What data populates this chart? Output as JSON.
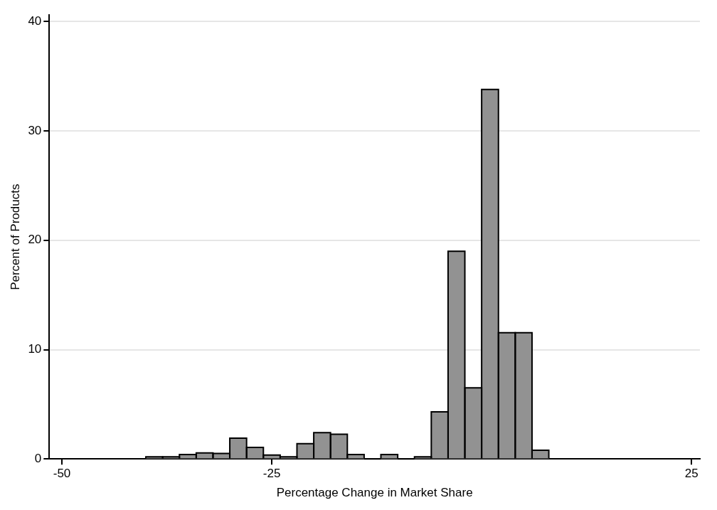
{
  "chart_data": {
    "type": "histogram",
    "xlabel": "Percentage Change in Market Share",
    "ylabel": "Percent of Products",
    "bins": [
      -40,
      -38,
      -36,
      -34,
      -32,
      -30,
      -28,
      -26,
      -24,
      -22,
      -20,
      -18,
      -16,
      -14,
      -12,
      -10,
      -8,
      -6,
      -4,
      -2,
      0,
      2,
      4,
      6,
      8
    ],
    "values": [
      0.2,
      0.2,
      0.4,
      0.55,
      0.5,
      1.9,
      1.05,
      0.35,
      0.2,
      1.4,
      2.4,
      2.25,
      0.4,
      0,
      0.4,
      0,
      0.2,
      4.3,
      19.0,
      6.5,
      33.8,
      11.55,
      11.55,
      0.8
    ],
    "color": "#929292",
    "xlim": [
      -51.5,
      26
    ],
    "xticks": [
      -50,
      -25,
      25
    ],
    "ylim": [
      0,
      40.6
    ],
    "yticks": [
      0,
      10,
      20,
      30,
      40
    ],
    "grid": "y"
  }
}
